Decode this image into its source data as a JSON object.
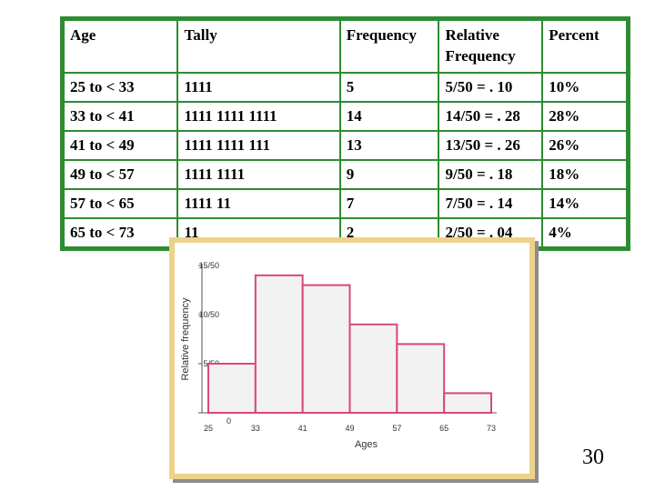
{
  "table": {
    "headers": [
      "Age",
      "Tally",
      "Frequency",
      "Relative Frequency",
      "Percent"
    ],
    "rows": [
      {
        "age": "25 to < 33",
        "tally": "1111",
        "frequency": "5",
        "relative": "5/50 = . 10",
        "percent": "10%"
      },
      {
        "age": "33 to < 41",
        "tally": "1111  1111  1111",
        "frequency": "14",
        "relative": "14/50 = . 28",
        "percent": "28%"
      },
      {
        "age": "41 to < 49",
        "tally": "1111  1111  111",
        "frequency": "13",
        "relative": "13/50 = . 26",
        "percent": "26%"
      },
      {
        "age": "49 to < 57",
        "tally": "1111  1111",
        "frequency": "9",
        "relative": "9/50 = . 18",
        "percent": "18%"
      },
      {
        "age": "57 to < 65",
        "tally": "1111  11",
        "frequency": "7",
        "relative": "7/50 = . 14",
        "percent": "14%"
      },
      {
        "age": "65 to < 73",
        "tally": "11",
        "frequency": "2",
        "relative": "2/50 = . 04",
        "percent": "4%"
      }
    ]
  },
  "chart_data": {
    "type": "bar",
    "bin_edges": [
      25,
      33,
      41,
      49,
      57,
      65,
      73
    ],
    "x_tick_labels": [
      "25",
      "33",
      "41",
      "49",
      "57",
      "65",
      "73"
    ],
    "values": [
      5,
      14,
      13,
      9,
      7,
      2
    ],
    "y_ticks": [
      0,
      5,
      10,
      15
    ],
    "y_tick_labels": [
      "0",
      "5/50",
      "10/50",
      "15/50"
    ],
    "ylim": [
      0,
      15
    ],
    "xlabel": "Ages",
    "ylabel": "Relative frequency",
    "grid": false,
    "bar_color": "#f2f2f2",
    "edge_color": "#d9467e"
  },
  "slide_number": "30"
}
